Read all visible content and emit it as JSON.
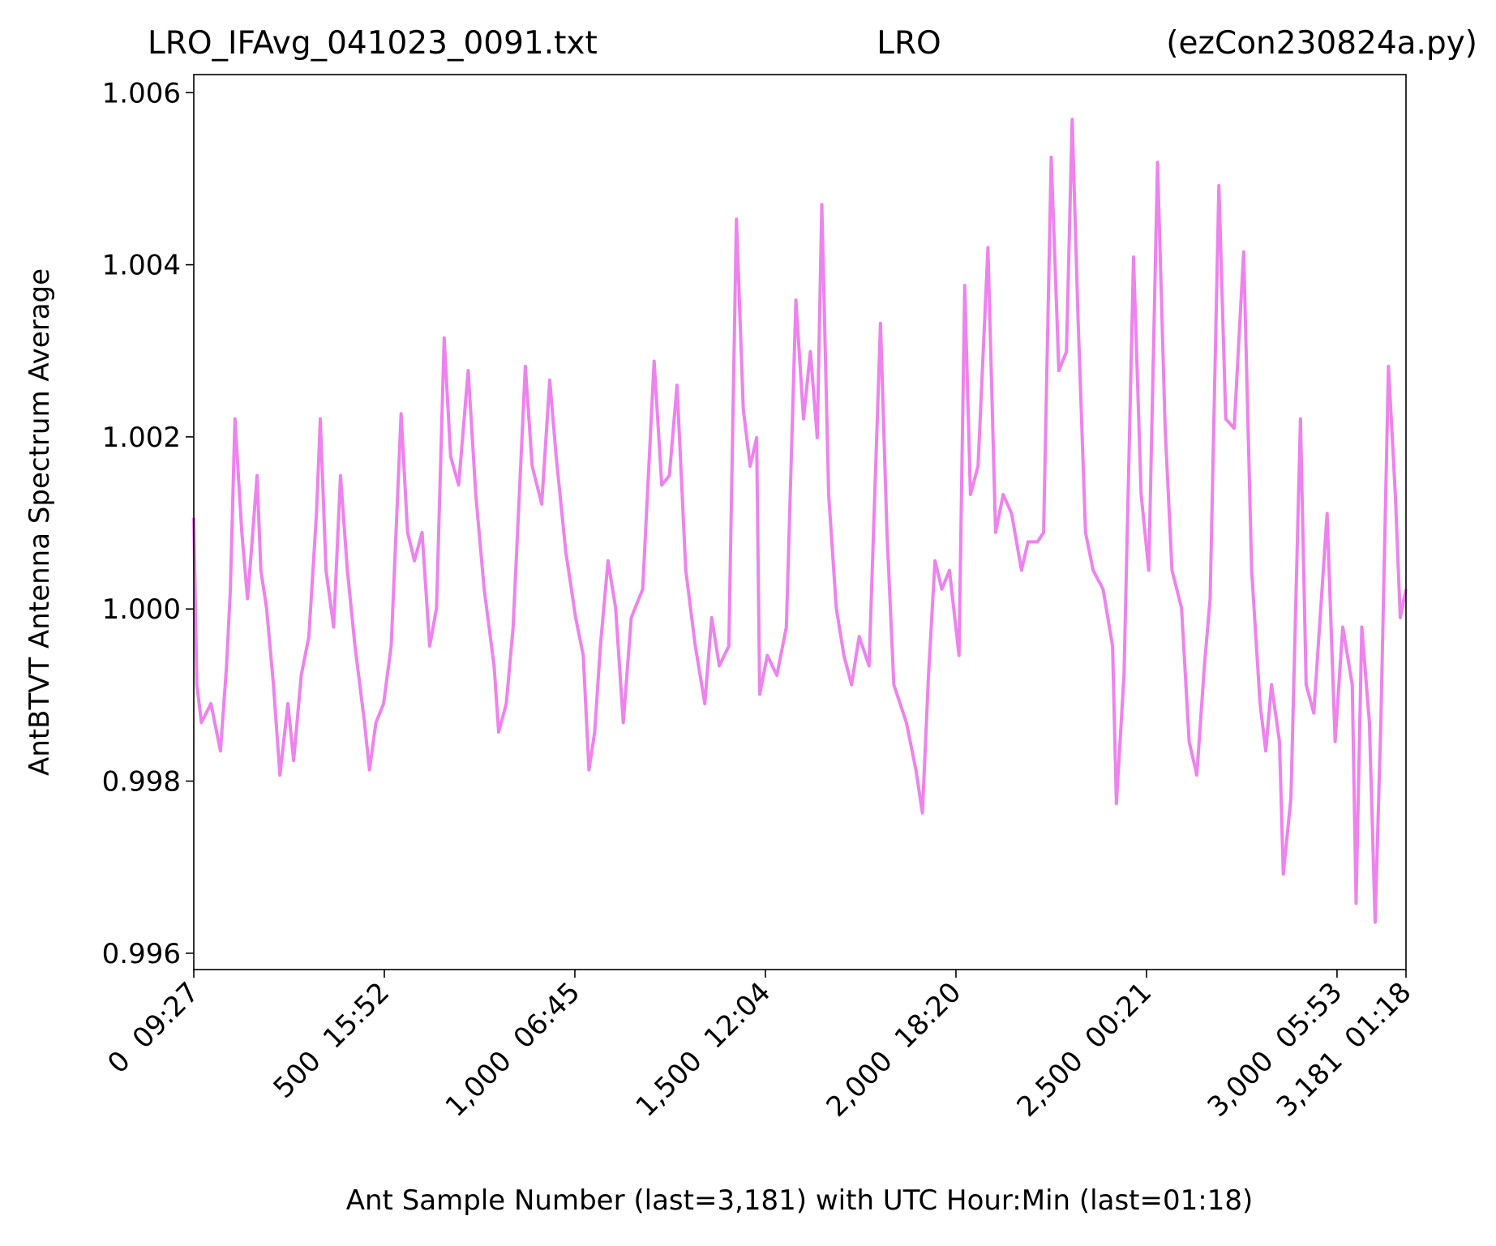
{
  "chart_data": {
    "type": "line",
    "title_left": "LRO_IFAvg_041023_0091.txt",
    "title_center": "LRO",
    "title_right": "(ezCon230824a.py)",
    "xlabel": "Ant Sample Number (last=3,181) with UTC Hour:Min (last=01:18)",
    "ylabel": "AntBTVT Antenna Spectrum Average",
    "xlim": [
      0,
      3181
    ],
    "ylim": [
      0.99581,
      1.00621
    ],
    "xticks": [
      {
        "value": 0,
        "label": "0  09:27"
      },
      {
        "value": 500,
        "label": "500  15:52"
      },
      {
        "value": 1000,
        "label": "1,000  06:45"
      },
      {
        "value": 1500,
        "label": "1,500  12:04"
      },
      {
        "value": 2000,
        "label": "2,000  18:20"
      },
      {
        "value": 2500,
        "label": "2,500  00:21"
      },
      {
        "value": 3000,
        "label": "3,000  05:53"
      },
      {
        "value": 3181,
        "label": "3,181  01:18"
      }
    ],
    "yticks": [
      {
        "value": 0.996,
        "label": "0.996"
      },
      {
        "value": 0.998,
        "label": "0.998"
      },
      {
        "value": 1.0,
        "label": "1.000"
      },
      {
        "value": 1.002,
        "label": "1.002"
      },
      {
        "value": 1.004,
        "label": "1.004"
      },
      {
        "value": 1.006,
        "label": "1.006"
      }
    ],
    "grid": false,
    "series": [
      {
        "color": "#ee82ee",
        "x": [
          0,
          8,
          20,
          45,
          70,
          86,
          96,
          108,
          126,
          141,
          151,
          166,
          176,
          191,
          209,
          226,
          247,
          262,
          282,
          302,
          322,
          332,
          347,
          367,
          385,
          403,
          423,
          448,
          461,
          478,
          498,
          518,
          544,
          561,
          579,
          599,
          619,
          637,
          657,
          674,
          695,
          720,
          740,
          762,
          788,
          800,
          820,
          838,
          870,
          888,
          913,
          934,
          951,
          976,
          1002,
          1022,
          1037,
          1052,
          1067,
          1087,
          1107,
          1127,
          1148,
          1178,
          1208,
          1228,
          1248,
          1268,
          1291,
          1316,
          1341,
          1359,
          1379,
          1404,
          1424,
          1442,
          1460,
          1477,
          1485,
          1505,
          1530,
          1555,
          1580,
          1600,
          1618,
          1636,
          1648,
          1666,
          1686,
          1706,
          1726,
          1746,
          1772,
          1802,
          1819,
          1837,
          1870,
          1895,
          1912,
          1928,
          1945,
          1963,
          1983,
          2008,
          2023,
          2038,
          2058,
          2084,
          2104,
          2124,
          2146,
          2172,
          2189,
          2214,
          2230,
          2250,
          2270,
          2290,
          2305,
          2320,
          2340,
          2360,
          2386,
          2411,
          2421,
          2441,
          2466,
          2486,
          2506,
          2529,
          2549,
          2567,
          2592,
          2612,
          2632,
          2652,
          2667,
          2690,
          2708,
          2730,
          2755,
          2776,
          2798,
          2813,
          2828,
          2849,
          2859,
          2879,
          2904,
          2919,
          2939,
          2974,
          2995,
          3015,
          3040,
          3050,
          3065,
          3085,
          3100,
          3115,
          3135,
          3153,
          3166,
          3181
        ],
        "values": [
          1.00106,
          0.99912,
          0.99868,
          0.9989,
          0.99835,
          0.99934,
          1.00023,
          1.00221,
          1.00089,
          1.00012,
          1.00067,
          1.00155,
          1.00045,
          1.00001,
          0.99912,
          0.99807,
          0.9989,
          0.99824,
          0.99923,
          0.99968,
          1.00111,
          1.00221,
          1.00045,
          0.99979,
          1.00155,
          1.00045,
          0.99957,
          0.99868,
          0.99813,
          0.99868,
          0.9989,
          0.99957,
          1.00227,
          1.00089,
          1.00056,
          1.00089,
          0.99957,
          1.00001,
          1.00315,
          1.00177,
          1.00144,
          1.00277,
          1.00133,
          1.00023,
          0.99934,
          0.99857,
          0.9989,
          0.99979,
          1.00282,
          1.00166,
          1.00122,
          1.00266,
          1.00177,
          1.00067,
          0.9999,
          0.99946,
          0.99813,
          0.99857,
          0.99957,
          1.00056,
          1.00001,
          0.99868,
          0.9999,
          1.00023,
          1.00288,
          1.00144,
          1.00155,
          1.0026,
          1.00045,
          0.99957,
          0.9989,
          0.9999,
          0.99934,
          0.99957,
          1.00453,
          1.00232,
          1.00166,
          1.00199,
          0.99901,
          0.99946,
          0.99923,
          0.99979,
          1.00359,
          1.00221,
          1.00299,
          1.00199,
          1.0047,
          1.00133,
          1.00001,
          0.99946,
          0.99912,
          0.99968,
          0.99934,
          1.00332,
          1.00089,
          0.99912,
          0.99868,
          0.99813,
          0.99763,
          0.99923,
          1.00056,
          1.00023,
          1.00045,
          0.99946,
          1.00376,
          1.00133,
          1.00166,
          1.0042,
          1.00089,
          1.00133,
          1.00111,
          1.00045,
          1.00078,
          1.00078,
          1.00089,
          1.00525,
          1.00277,
          1.00299,
          1.00569,
          1.00343,
          1.00089,
          1.00045,
          1.00023,
          0.99957,
          0.99774,
          0.99923,
          1.00409,
          1.00133,
          1.00045,
          1.00519,
          1.0021,
          1.00045,
          1.00001,
          0.99846,
          0.99807,
          0.99934,
          1.00012,
          1.00492,
          1.00221,
          1.0021,
          1.00415,
          1.00045,
          0.9989,
          0.99835,
          0.99912,
          0.99846,
          0.99692,
          0.9978,
          1.00221,
          0.99912,
          0.99879,
          1.00111,
          0.99846,
          0.99979,
          0.99912,
          0.99658,
          0.99979,
          0.99868,
          0.99636,
          0.99868,
          1.00282,
          1.00133,
          0.9999,
          1.00023
        ]
      }
    ]
  }
}
